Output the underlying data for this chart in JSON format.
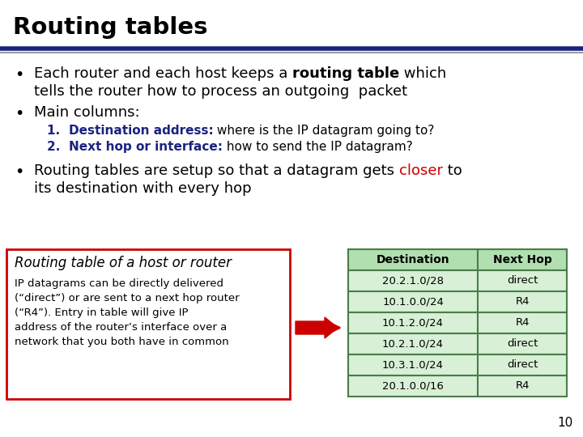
{
  "title": "Routing tables",
  "background_color": "#ffffff",
  "header_line_color1": "#1a237e",
  "header_line_color2": "#888888",
  "page_number": "10",
  "closer_color": "#cc0000",
  "blue_color": "#1a237e",
  "box_left_border": "#cc0000",
  "table_header_bg": "#b2dfb0",
  "table_body_bg": "#d8f0d5",
  "table_border": "#4a7c4a",
  "table_col1_header": "Destination",
  "table_col2_header": "Next Hop",
  "table_rows": [
    [
      "20.2.1.0/28",
      "direct"
    ],
    [
      "10.1.0.0/24",
      "R4"
    ],
    [
      "10.1.2.0/24",
      "R4"
    ],
    [
      "10.2.1.0/24",
      "direct"
    ],
    [
      "10.3.1.0/24",
      "direct"
    ],
    [
      "20.1.0.0/16",
      "R4"
    ]
  ],
  "arrow_color": "#cc0000",
  "box_left_title": "Routing table of a host or router",
  "box_left_body_lines": [
    "IP datagrams can be directly delivered",
    "(“direct”) or are sent to a next hop router",
    "(“R4”). Entry in table will give IP",
    "address of the router’s interface over a",
    "network that you both have in common"
  ]
}
